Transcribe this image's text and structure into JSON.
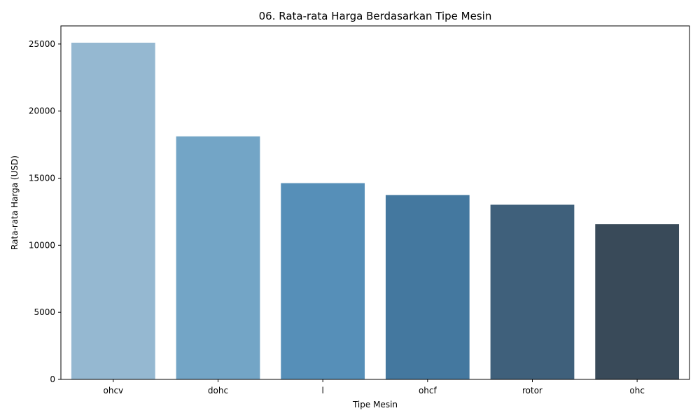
{
  "chart_data": {
    "type": "bar",
    "title": "06. Rata-rata Harga Berdasarkan Tipe Mesin",
    "xlabel": "Tipe Mesin",
    "ylabel": "Rata-rata Harga (USD)",
    "categories": [
      "ohcv",
      "dohc",
      "l",
      "ohcf",
      "rotor",
      "ohc"
    ],
    "values": [
      25098,
      18116,
      14627,
      13738,
      13020,
      11575
    ],
    "colors": [
      "#95b8d1",
      "#73a5c6",
      "#568fb8",
      "#44789f",
      "#3f607b",
      "#394a59"
    ],
    "ylim": [
      0,
      26350
    ],
    "yticks": [
      0,
      5000,
      10000,
      15000,
      20000,
      25000
    ],
    "grid": false,
    "legend": "none"
  }
}
